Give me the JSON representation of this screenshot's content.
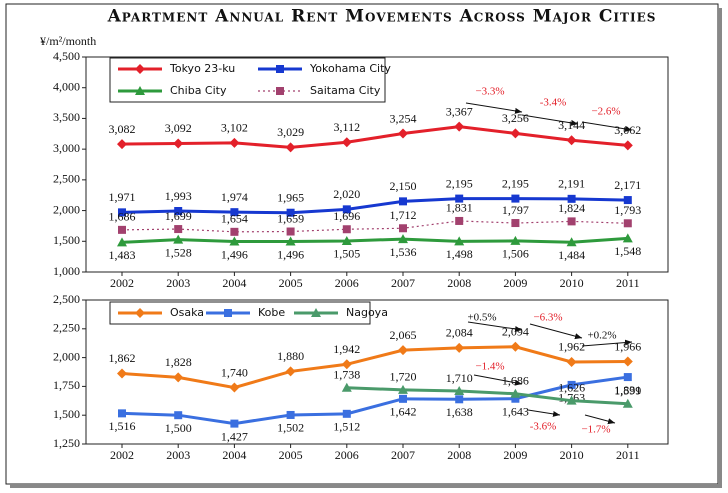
{
  "chart_data": [
    {
      "type": "line",
      "title": "Apartment Annual Rent Movements Across Major Cities",
      "y_label": "¥/m²/month",
      "categories": [
        "2002",
        "2003",
        "2004",
        "2005",
        "2006",
        "2007",
        "2008",
        "2009",
        "2010",
        "2011"
      ],
      "ylim": [
        1000,
        4500
      ],
      "yticks": [
        {
          "value": 1000,
          "label": "1,000"
        },
        {
          "value": 1500,
          "label": "1,500"
        },
        {
          "value": 2000,
          "label": "2,000"
        },
        {
          "value": 2500,
          "label": "2,500"
        },
        {
          "value": 3000,
          "label": "3,000"
        },
        {
          "value": 3500,
          "label": "3,500"
        },
        {
          "value": 4000,
          "label": "4,000"
        },
        {
          "value": 4500,
          "label": "4,500"
        }
      ],
      "legend": "upper left",
      "series": [
        {
          "name": "Tokyo 23-ku",
          "color": "#e3202a",
          "marker": "diamond",
          "line_style": "solid",
          "values": [
            3082,
            3092,
            3102,
            3029,
            3112,
            3254,
            3367,
            3256,
            3144,
            3062
          ],
          "value_labels": [
            "3,082",
            "3,092",
            "3,102",
            "3,029",
            "3,112",
            "3,254",
            "3,367",
            "3,256",
            "3,144",
            "3,062"
          ]
        },
        {
          "name": "Yokohama City",
          "color": "#1638d0",
          "marker": "square",
          "line_style": "solid",
          "values": [
            1971,
            1993,
            1974,
            1965,
            2020,
            2150,
            2195,
            2195,
            2191,
            2171
          ],
          "value_labels": [
            "1,971",
            "1,993",
            "1,974",
            "1,965",
            "2,020",
            "2,150",
            "2,195",
            "2,195",
            "2,191",
            "2,171"
          ]
        },
        {
          "name": "Chiba City",
          "color": "#2e9a3c",
          "marker": "triangle",
          "line_style": "solid",
          "values": [
            1483,
            1528,
            1496,
            1496,
            1505,
            1536,
            1498,
            1506,
            1484,
            1548
          ],
          "value_labels": [
            "1,483",
            "1,528",
            "1,496",
            "1,496",
            "1,505",
            "1,536",
            "1,498",
            "1,506",
            "1,484",
            "1,548"
          ]
        },
        {
          "name": "Saitama City",
          "color": "#a2416e",
          "marker": "square",
          "line_style": "dotted",
          "values": [
            1686,
            1699,
            1654,
            1659,
            1696,
            1712,
            1831,
            1797,
            1824,
            1793
          ],
          "value_labels": [
            "1,686",
            "1,699",
            "1,654",
            "1,659",
            "1,696",
            "1,712",
            "1,831",
            "1,797",
            "1,824",
            "1,793"
          ]
        }
      ],
      "annotations": [
        {
          "text": "−3.3%",
          "color": "#e3202a"
        },
        {
          "text": "-3.4%",
          "color": "#e3202a"
        },
        {
          "text": "−2.6%",
          "color": "#e3202a"
        }
      ]
    },
    {
      "type": "line",
      "categories": [
        "2002",
        "2003",
        "2004",
        "2005",
        "2006",
        "2007",
        "2008",
        "2009",
        "2010",
        "2011"
      ],
      "ylim": [
        1250,
        2500
      ],
      "yticks": [
        {
          "value": 1250,
          "label": "1,250"
        },
        {
          "value": 1500,
          "label": "1,500"
        },
        {
          "value": 1750,
          "label": "1,750"
        },
        {
          "value": 2000,
          "label": "2,000"
        },
        {
          "value": 2250,
          "label": "2,250"
        },
        {
          "value": 2500,
          "label": "2,500"
        }
      ],
      "legend": "upper left",
      "series": [
        {
          "name": "Osaka",
          "color": "#f07a18",
          "marker": "diamond",
          "line_style": "solid",
          "values": [
            1862,
            1828,
            1740,
            1880,
            1942,
            2065,
            2084,
            2094,
            1962,
            1966
          ],
          "value_labels": [
            "1,862",
            "1,828",
            "1,740",
            "1,880",
            "1,942",
            "2,065",
            "2,084",
            "2,094",
            "1,962",
            "1,966"
          ]
        },
        {
          "name": "Kobe",
          "color": "#3a6fe0",
          "marker": "square",
          "line_style": "solid",
          "values": [
            1516,
            1500,
            1427,
            1502,
            1512,
            1642,
            1638,
            1643,
            1763,
            1831
          ],
          "value_labels": [
            "1,516",
            "1,500",
            "1,427",
            "1,502",
            "1,512",
            "1,642",
            "1,638",
            "1,643",
            "1,763",
            "1,831"
          ]
        },
        {
          "name": "Nagoya",
          "color": "#4a9a6a",
          "marker": "triangle",
          "line_style": "solid",
          "values": [
            null,
            null,
            null,
            null,
            1738,
            1720,
            1710,
            1686,
            1626,
            1599
          ],
          "value_labels": [
            null,
            null,
            null,
            null,
            "1,738",
            "1,720",
            "1,710",
            "1,686",
            "1,626",
            "1,599"
          ]
        }
      ],
      "annotations": [
        {
          "text": "+0.5%",
          "color": "#111111"
        },
        {
          "text": "−6.3%",
          "color": "#e3202a"
        },
        {
          "text": "+0.2%",
          "color": "#111111"
        },
        {
          "text": "−1.4%",
          "color": "#e3202a"
        },
        {
          "text": "-3.6%",
          "color": "#e3202a"
        },
        {
          "text": "−1.7%",
          "color": "#e3202a"
        }
      ]
    }
  ]
}
